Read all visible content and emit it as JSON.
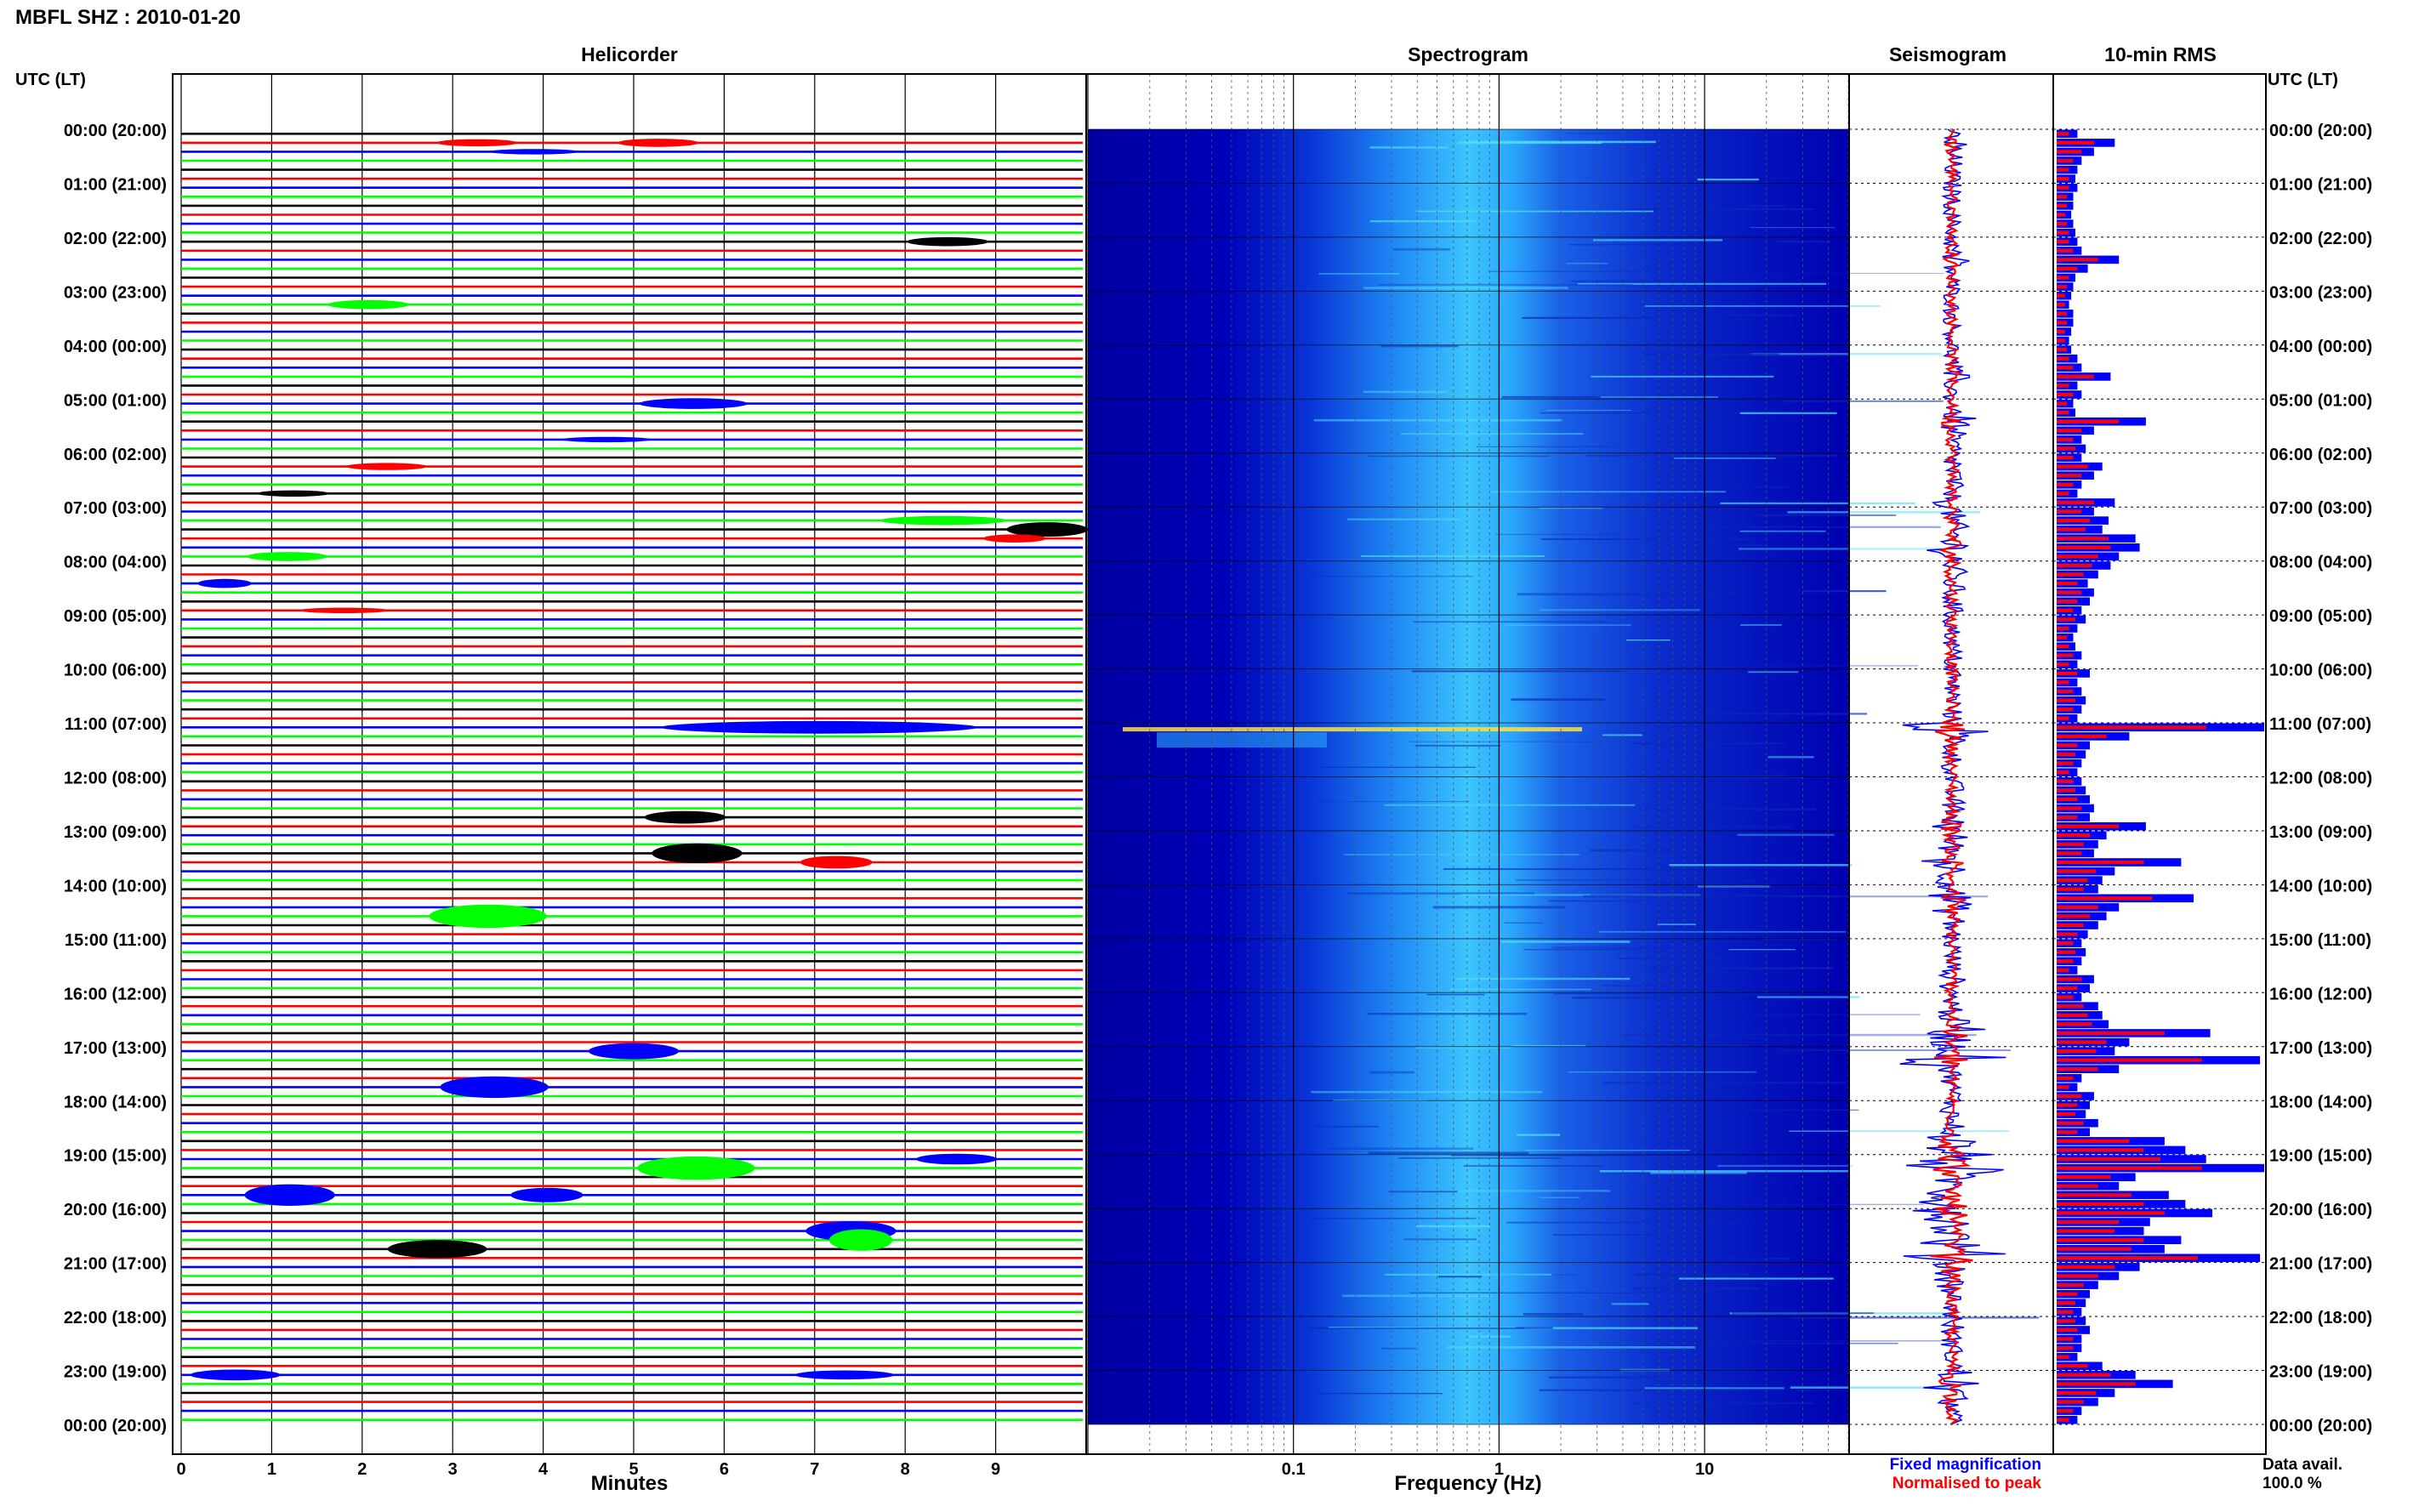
{
  "header": {
    "station_title": "MBFL SHZ : 2010-01-20"
  },
  "panels": {
    "helicorder": "Helicorder",
    "spectrogram": "Spectrogram",
    "seismogram": "Seismogram",
    "rms": "10-min RMS"
  },
  "axis": {
    "time_label_left": "UTC (LT)",
    "time_label_right": "UTC (LT)",
    "minutes_label": "Minutes",
    "frequency_label": "Frequency (Hz)"
  },
  "legend": {
    "fixed": "Fixed magnification",
    "normalised": "Normalised to peak",
    "data_avail_label": "Data avail.",
    "data_avail_value": "100.0 %"
  },
  "colors": {
    "black": "#000000",
    "red": "#ff0000",
    "blue": "#0000ff",
    "green": "#00ff00",
    "spec_dark": "#0000b4",
    "spec_mid": "#1e6cf0",
    "spec_light": "#40d0ff"
  },
  "chart_data": {
    "type": "helicorder",
    "time_labels": [
      "00:00 (20:00)",
      "01:00 (21:00)",
      "02:00 (22:00)",
      "03:00 (23:00)",
      "04:00 (00:00)",
      "05:00 (01:00)",
      "06:00 (02:00)",
      "07:00 (03:00)",
      "08:00 (04:00)",
      "09:00 (05:00)",
      "10:00 (06:00)",
      "11:00 (07:00)",
      "12:00 (08:00)",
      "13:00 (09:00)",
      "14:00 (10:00)",
      "15:00 (11:00)",
      "16:00 (12:00)",
      "17:00 (13:00)",
      "18:00 (14:00)",
      "19:00 (15:00)",
      "20:00 (16:00)",
      "21:00 (17:00)",
      "22:00 (18:00)",
      "23:00 (19:00)",
      "00:00 (20:00)"
    ],
    "minutes_ticks": [
      "0",
      "1",
      "2",
      "3",
      "4",
      "5",
      "6",
      "7",
      "8",
      "9"
    ],
    "freq_ticks": [
      "0.1",
      "1",
      "10"
    ],
    "trace_colors": [
      "black",
      "red",
      "blue",
      "green"
    ],
    "rms_fixed": [
      0.1,
      0.28,
      0.18,
      0.12,
      0.1,
      0.09,
      0.1,
      0.08,
      0.08,
      0.07,
      0.08,
      0.09,
      0.1,
      0.12,
      0.3,
      0.15,
      0.09,
      0.08,
      0.07,
      0.06,
      0.08,
      0.08,
      0.07,
      0.06,
      0.07,
      0.1,
      0.12,
      0.26,
      0.1,
      0.12,
      0.08,
      0.09,
      0.43,
      0.18,
      0.12,
      0.14,
      0.12,
      0.22,
      0.18,
      0.12,
      0.1,
      0.28,
      0.18,
      0.25,
      0.22,
      0.38,
      0.4,
      0.3,
      0.26,
      0.2,
      0.15,
      0.18,
      0.16,
      0.12,
      0.14,
      0.1,
      0.08,
      0.09,
      0.12,
      0.1,
      0.16,
      0.1,
      0.12,
      0.14,
      0.12,
      0.1,
      1.0,
      0.35,
      0.16,
      0.14,
      0.12,
      0.1,
      0.12,
      0.14,
      0.16,
      0.18,
      0.16,
      0.43,
      0.24,
      0.2,
      0.18,
      0.6,
      0.28,
      0.22,
      0.2,
      0.66,
      0.3,
      0.24,
      0.2,
      0.15,
      0.12,
      0.14,
      0.12,
      0.1,
      0.18,
      0.16,
      0.12,
      0.2,
      0.22,
      0.25,
      0.74,
      0.35,
      0.28,
      0.98,
      0.3,
      0.12,
      0.1,
      0.18,
      0.16,
      0.14,
      0.2,
      0.16,
      0.52,
      0.62,
      0.72,
      1.0,
      0.38,
      0.3,
      0.54,
      0.62,
      0.75,
      0.45,
      0.42,
      0.6,
      0.52,
      0.98,
      0.4,
      0.3,
      0.2,
      0.16,
      0.14,
      0.12,
      0.14,
      0.16,
      0.12,
      0.12,
      0.1,
      0.22,
      0.38,
      0.56,
      0.28,
      0.2,
      0.12,
      0.1
    ],
    "rms_normalised": [
      0.06,
      0.18,
      0.12,
      0.08,
      0.06,
      0.06,
      0.06,
      0.05,
      0.05,
      0.04,
      0.05,
      0.06,
      0.06,
      0.08,
      0.2,
      0.1,
      0.06,
      0.05,
      0.04,
      0.04,
      0.05,
      0.05,
      0.04,
      0.04,
      0.05,
      0.06,
      0.08,
      0.18,
      0.06,
      0.08,
      0.05,
      0.06,
      0.3,
      0.12,
      0.08,
      0.09,
      0.08,
      0.15,
      0.12,
      0.08,
      0.06,
      0.18,
      0.12,
      0.16,
      0.14,
      0.25,
      0.26,
      0.2,
      0.17,
      0.13,
      0.1,
      0.12,
      0.1,
      0.08,
      0.09,
      0.06,
      0.05,
      0.06,
      0.08,
      0.06,
      0.1,
      0.06,
      0.08,
      0.09,
      0.08,
      0.06,
      0.72,
      0.24,
      0.1,
      0.09,
      0.08,
      0.06,
      0.08,
      0.09,
      0.1,
      0.12,
      0.1,
      0.3,
      0.16,
      0.13,
      0.12,
      0.42,
      0.19,
      0.15,
      0.13,
      0.46,
      0.2,
      0.16,
      0.13,
      0.1,
      0.08,
      0.09,
      0.08,
      0.06,
      0.12,
      0.1,
      0.08,
      0.13,
      0.15,
      0.17,
      0.52,
      0.24,
      0.19,
      0.7,
      0.2,
      0.08,
      0.06,
      0.12,
      0.1,
      0.09,
      0.13,
      0.1,
      0.35,
      0.42,
      0.5,
      0.7,
      0.26,
      0.2,
      0.36,
      0.42,
      0.52,
      0.3,
      0.28,
      0.42,
      0.36,
      0.68,
      0.28,
      0.2,
      0.13,
      0.1,
      0.09,
      0.08,
      0.09,
      0.1,
      0.08,
      0.08,
      0.06,
      0.15,
      0.26,
      0.38,
      0.19,
      0.13,
      0.08,
      0.06
    ]
  }
}
